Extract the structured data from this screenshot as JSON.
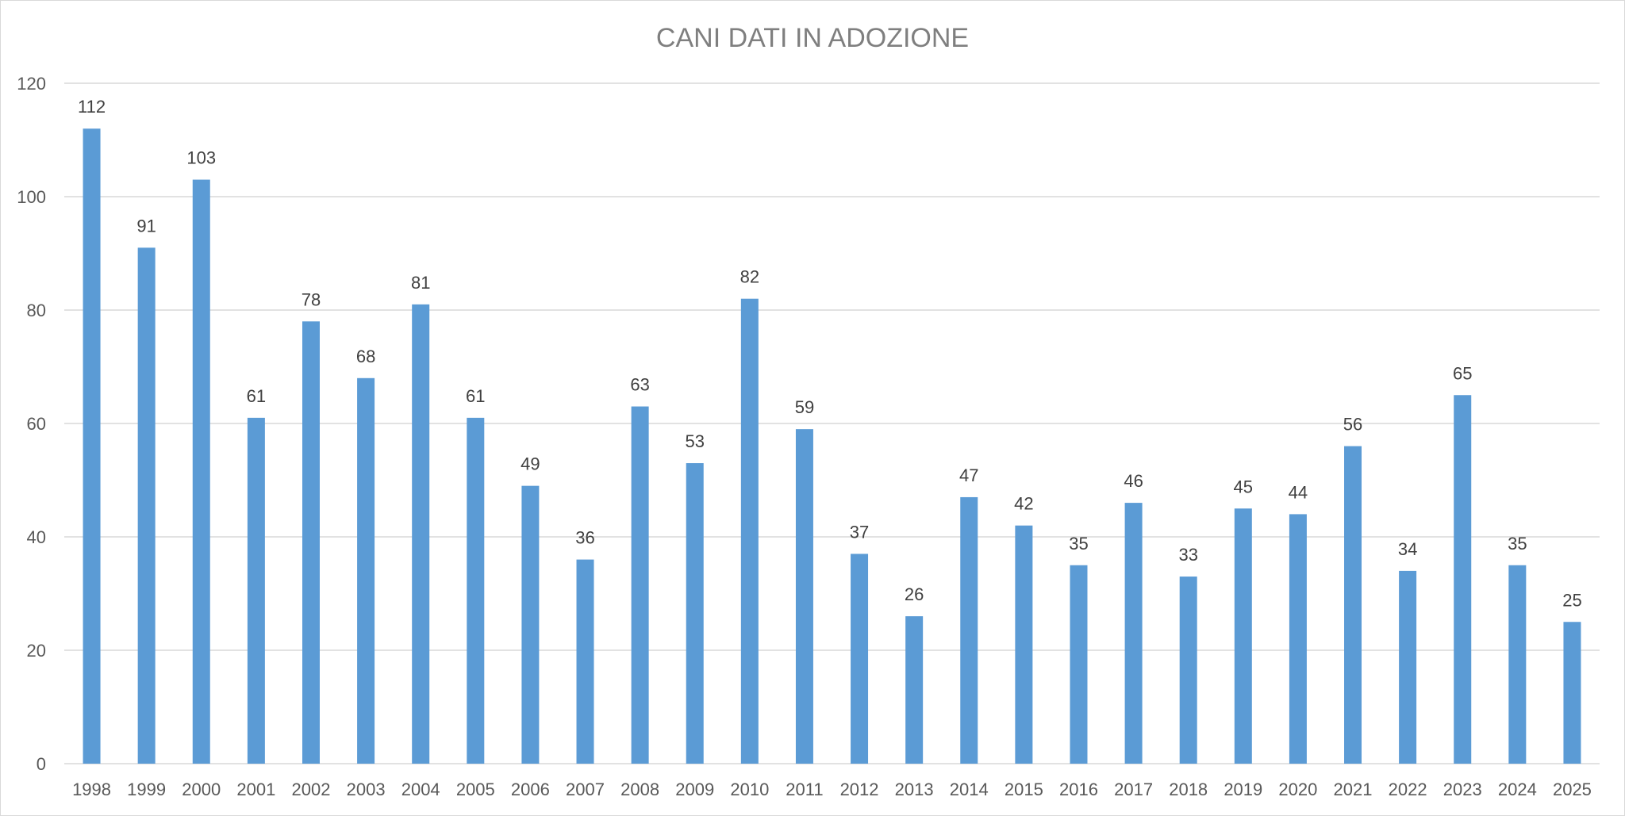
{
  "chart_data": {
    "type": "bar",
    "title": "CANI DATI IN ADOZIONE",
    "xlabel": "",
    "ylabel": "",
    "categories": [
      "1998",
      "1999",
      "2000",
      "2001",
      "2002",
      "2003",
      "2004",
      "2005",
      "2006",
      "2007",
      "2008",
      "2009",
      "2010",
      "2011",
      "2012",
      "2013",
      "2014",
      "2015",
      "2016",
      "2017",
      "2018",
      "2019",
      "2020",
      "2021",
      "2022",
      "2023",
      "2024",
      "2025"
    ],
    "values": [
      112,
      91,
      103,
      61,
      78,
      68,
      81,
      61,
      49,
      36,
      63,
      53,
      82,
      59,
      37,
      26,
      47,
      42,
      35,
      46,
      33,
      45,
      44,
      56,
      34,
      65,
      35,
      25
    ],
    "ylim": [
      0,
      120
    ],
    "yticks": [
      "0",
      "20",
      "40",
      "60",
      "80",
      "100",
      "120"
    ],
    "grid": true,
    "data_labels": true,
    "legend": "none",
    "bar_color": "#5b9bd5"
  }
}
